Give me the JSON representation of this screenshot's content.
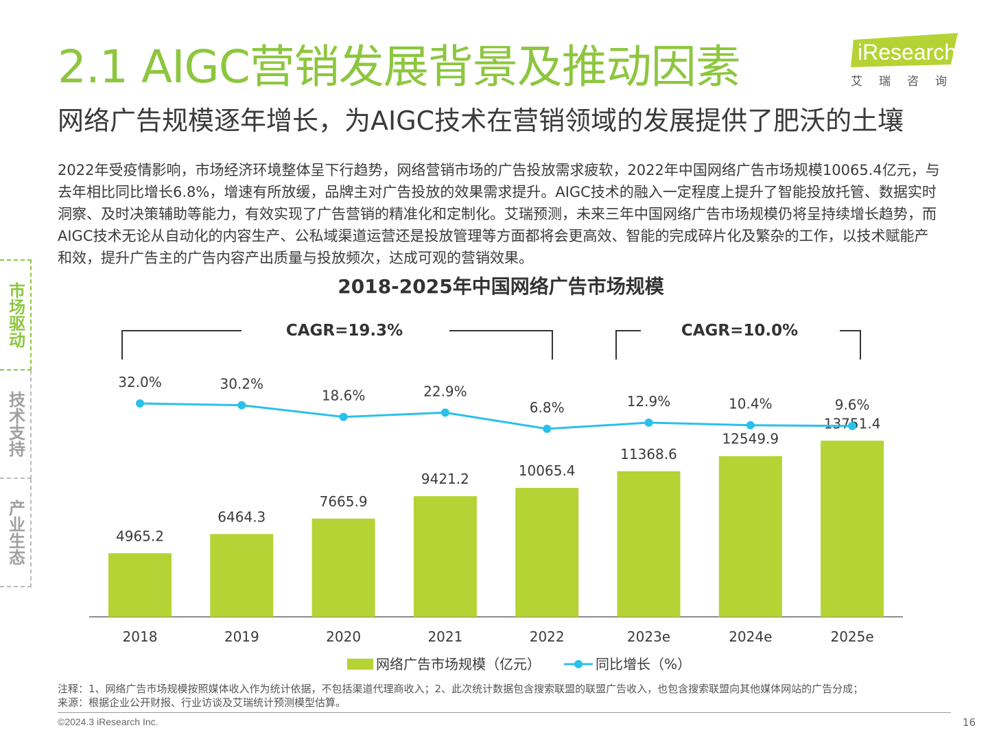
{
  "header": {
    "title": "2.1 AIGC营销发展背景及推动因素",
    "subtitle": "网络广告规模逐年增长，为AIGC技术在营销领域的发展提供了肥沃的土壤"
  },
  "logo": {
    "word": "iResearch",
    "sub": "艾瑞咨询",
    "color": "#b5d334"
  },
  "body_text": "2022年受疫情影响，市场经济环境整体呈下行趋势，网络营销市场的广告投放需求疲软，2022年中国网络广告市场规模10065.4亿元，与去年相比同比增长6.8%，增速有所放缓，品牌主对广告投放的效果需求提升。AIGC技术的融入一定程度上提升了智能投放托管、数据实时洞察、及时决策辅助等能力，有效实现了广告营销的精准化和定制化。艾瑞预测，未来三年中国网络广告市场规模仍将呈持续增长趋势，而AIGC技术无论从自动化的内容生产、公私域渠道运营还是投放管理等方面都将会更高效、智能的完成碎片化及繁杂的工作，以技术赋能产和效，提升广告主的广告内容产出质量与投放频次，达成可观的营销效果。",
  "side_tabs": [
    {
      "label": "市场驱动",
      "active": true
    },
    {
      "label": "技术支持",
      "active": false
    },
    {
      "label": "产业生态",
      "active": false
    }
  ],
  "chart_data": {
    "type": "bar",
    "title": "2018-2025年中国网络广告市场规模",
    "categories": [
      "2018",
      "2019",
      "2020",
      "2021",
      "2022",
      "2023e",
      "2024e",
      "2025e"
    ],
    "series": [
      {
        "name": "网络广告市场规模（亿元）",
        "type": "bar",
        "color": "#b5d334",
        "values": [
          4965.2,
          6464.3,
          7665.9,
          9421.2,
          10065.4,
          11368.6,
          12549.9,
          13751.4
        ],
        "labels": [
          "4965.2",
          "6464.3",
          "7665.9",
          "9421.2",
          "10065.4",
          "11368.6",
          "12549.9",
          "13751.4"
        ]
      },
      {
        "name": "同比增长（%）",
        "type": "line",
        "color": "#29c0ec",
        "values": [
          32.0,
          30.2,
          18.6,
          22.9,
          6.8,
          12.9,
          10.4,
          9.6
        ],
        "labels": [
          "32.0%",
          "30.2%",
          "18.6%",
          "22.9%",
          "6.8%",
          "12.9%",
          "10.4%",
          "9.6%"
        ]
      }
    ],
    "annotations": [
      {
        "text": "CAGR=19.3%",
        "from": "2018",
        "to": "2022"
      },
      {
        "text": "CAGR=10.0%",
        "from": "2023e",
        "to": "2025e"
      }
    ],
    "legend_position": "bottom",
    "grid": false
  },
  "notes": {
    "line1": "注释：1、网络广告市场规模按照媒体收入作为统计依据，不包括渠道代理商收入；2、此次统计数据包含搜索联盟的联盟广告收入，也包含搜索联盟向其他媒体网站的广告分成；",
    "line2": "来源：根据企业公开财报、行业访谈及艾瑞统计预测模型估算。"
  },
  "footer": {
    "copyright": "©2024.3 iResearch Inc.",
    "page": "16"
  }
}
